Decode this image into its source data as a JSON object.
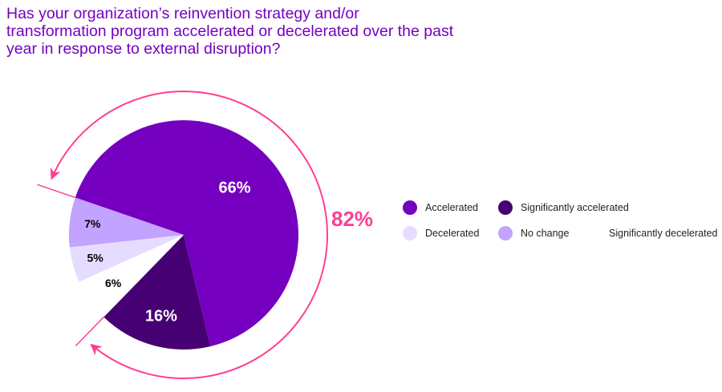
{
  "title": "Has your organization’s reinvention strategy and/or transformation program accelerated or decelerated over the past year in response to external disruption?",
  "chart_data": {
    "type": "pie",
    "title": "Has your organization’s reinvention strategy and/or transformation program accelerated or decelerated over the past year in response to external disruption?",
    "slices": [
      {
        "name": "Accelerated",
        "value": 66,
        "label": "66%",
        "color": "#7500C0",
        "label_color": "#FFFFFF"
      },
      {
        "name": "Significantly accelerated",
        "value": 16,
        "label": "16%",
        "color": "#460073",
        "label_color": "#FFFFFF"
      },
      {
        "name": "Significantly decelerated",
        "value": 6,
        "label": "6%",
        "color": "#FFFFFF",
        "label_color": "#000000"
      },
      {
        "name": "Decelerated",
        "value": 5,
        "label": "5%",
        "color": "#E6DCFF",
        "label_color": "#000000"
      },
      {
        "name": "No change",
        "value": 7,
        "label": "7%",
        "color": "#C2A3FF",
        "label_color": "#000000"
      }
    ],
    "annotation": {
      "label": "82%",
      "spans": [
        "Accelerated",
        "Significantly accelerated"
      ],
      "color": "#FF3E94"
    },
    "legend": {
      "placement": "right",
      "items": [
        {
          "name": "Accelerated",
          "color": "#7500C0"
        },
        {
          "name": "Significantly accelerated",
          "color": "#460073"
        },
        {
          "name": "Decelerated",
          "color": "#E6DCFF"
        },
        {
          "name": "No change",
          "color": "#C2A3FF"
        },
        {
          "name": "Significantly decelerated",
          "color": "#FFFFFF"
        }
      ]
    }
  }
}
